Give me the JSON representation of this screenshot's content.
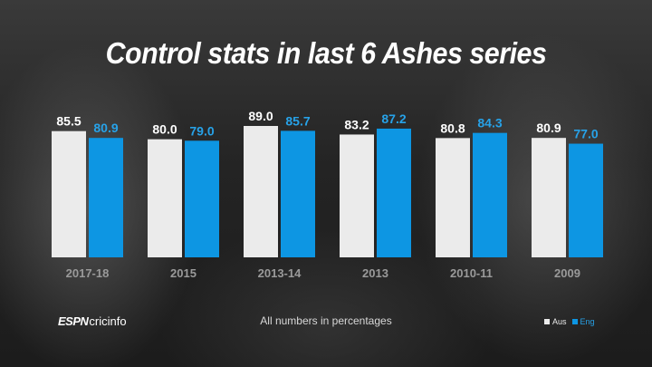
{
  "header": {
    "title": "Control stats in last 6 Ashes series"
  },
  "footer": {
    "brand_espn": "ESPN",
    "brand_cric": "cricinfo",
    "note": "All numbers in percentages"
  },
  "colors": {
    "aus": "#ebebeb",
    "eng": "#0d96e3",
    "aus_label": "#ffffff",
    "eng_label": "#27a2e8"
  },
  "chart_data": {
    "type": "bar",
    "title": "Control stats in last 6 Ashes series",
    "categories": [
      "2017-18",
      "2015",
      "2013-14",
      "2013",
      "2010-11",
      "2009"
    ],
    "series": [
      {
        "name": "Aus",
        "values": [
          85.5,
          80.0,
          89.0,
          83.2,
          80.8,
          80.9
        ]
      },
      {
        "name": "Eng",
        "values": [
          80.9,
          79.0,
          85.7,
          87.2,
          84.3,
          77.0
        ]
      }
    ],
    "value_labels": [
      [
        "85.5",
        "80.0",
        "89.0",
        "83.2",
        "80.8",
        "80.9"
      ],
      [
        "80.9",
        "79.0",
        "85.7",
        "87.2",
        "84.3",
        "77.0"
      ]
    ],
    "legend": {
      "position": "bottom-right",
      "entries": [
        "Aus",
        "Eng"
      ]
    },
    "grid": false,
    "xlabel": "",
    "ylabel": ""
  }
}
